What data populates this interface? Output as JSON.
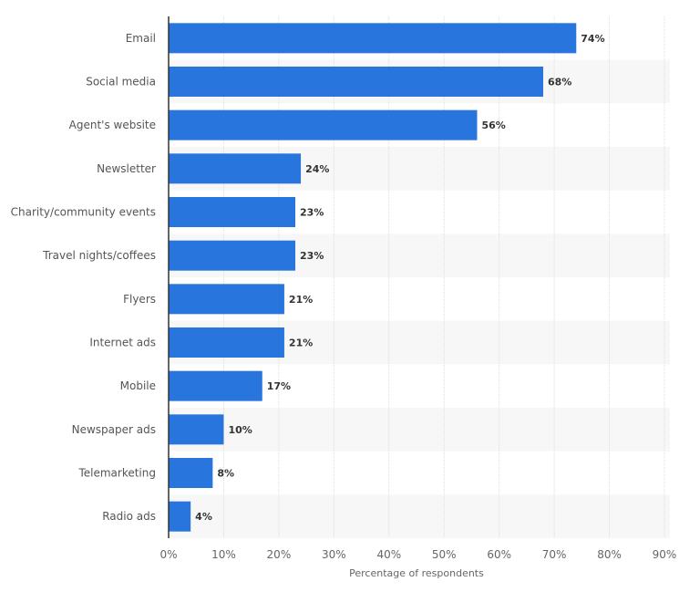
{
  "chart_data": {
    "type": "bar",
    "orientation": "horizontal",
    "categories": [
      "Email",
      "Social media",
      "Agent's website",
      "Newsletter",
      "Charity/community events",
      "Travel nights/coffees",
      "Flyers",
      "Internet ads",
      "Mobile",
      "Newspaper ads",
      "Telemarketing",
      "Radio ads"
    ],
    "values": [
      74,
      68,
      56,
      24,
      23,
      23,
      21,
      21,
      17,
      10,
      8,
      4
    ],
    "data_labels": [
      "74%",
      "68%",
      "56%",
      "24%",
      "23%",
      "23%",
      "21%",
      "21%",
      "17%",
      "10%",
      "8%",
      "4%"
    ],
    "xlabel": "Percentage of respondents",
    "xlim": [
      0,
      90
    ],
    "xticks": [
      "0%",
      "10%",
      "20%",
      "30%",
      "40%",
      "50%",
      "60%",
      "70%",
      "80%",
      "90%"
    ],
    "grid": true,
    "colors": {
      "bar": "#2876dd",
      "band": "#f7f7f7",
      "grid": "#dddddd"
    }
  }
}
